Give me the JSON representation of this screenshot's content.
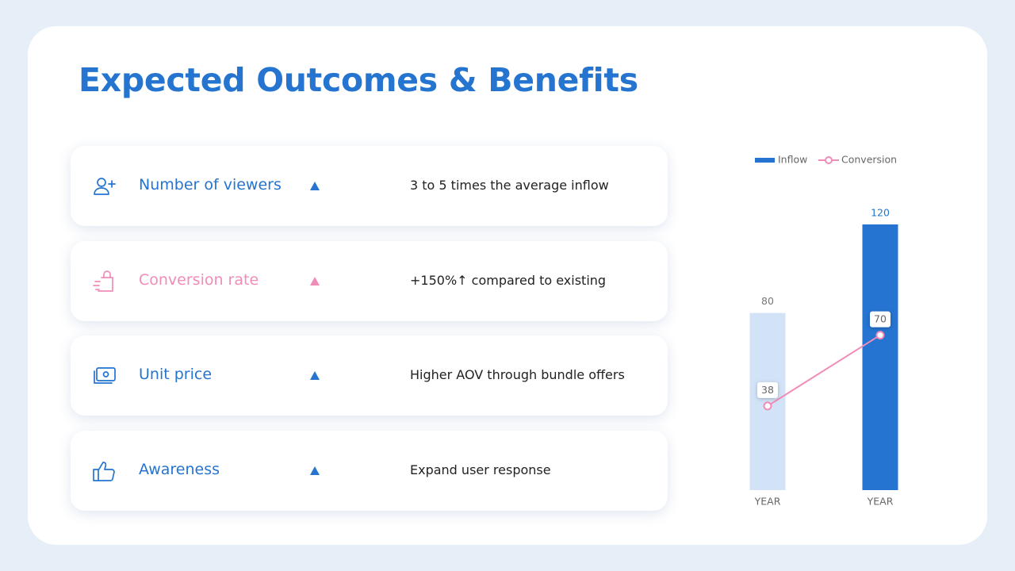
{
  "header": {
    "title": "Expected Outcomes & Benefits"
  },
  "items": [
    {
      "label": "Number of viewers",
      "text": "3 to 5 times the average inflow",
      "color": "#2474d0"
    },
    {
      "label": "Conversion rate",
      "text": "+150%↑ compared to existing",
      "color": "#f08cb8"
    },
    {
      "label": "Unit price",
      "text": "Higher AOV through bundle offers",
      "color": "#2474d0"
    },
    {
      "label": "Awareness",
      "text": "Expand user response",
      "color": "#2474d0"
    }
  ],
  "chart_data": {
    "type": "bar",
    "categories": [
      "YEAR",
      "YEAR"
    ],
    "series": [
      {
        "name": "Inflow",
        "type": "bar",
        "color": "#2574d1",
        "point_colors": [
          "#d2e3f7",
          "#2574d1"
        ],
        "values": [
          80,
          120
        ]
      },
      {
        "name": "Conversion",
        "type": "line",
        "color": "#f08cb8",
        "values": [
          38,
          70
        ]
      }
    ]
  }
}
